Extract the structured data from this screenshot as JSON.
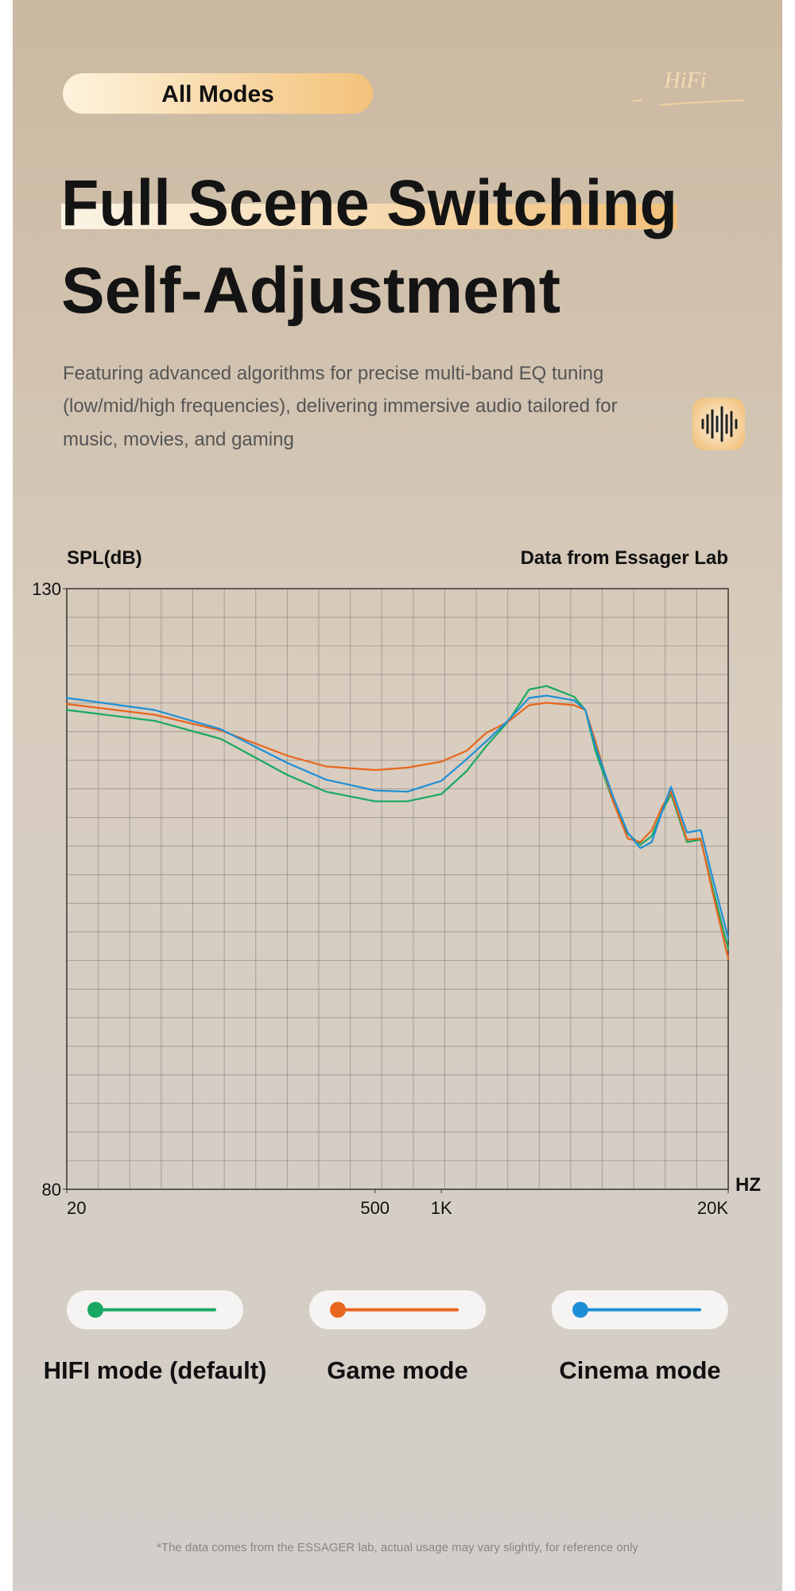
{
  "badge": "All Modes",
  "logo": "HiFi",
  "title_lines": [
    "Full Scene Switching",
    "Self-Adjustment"
  ],
  "description_lines": [
    "Featuring advanced algorithms for precise multi-band EQ tuning",
    "(low/mid/high frequencies), delivering immersive audio tailored for",
    "music, movies, and gaming"
  ],
  "footnote": "*The data comes from the ESSAGER lab, actual usage may vary slightly, for reference only",
  "chart_data": {
    "type": "line",
    "y_label": "SPL(dB)",
    "source": "Data from Essager Lab",
    "x_label": "HZ",
    "x": [
      20,
      50,
      100,
      200,
      300,
      500,
      700,
      1000,
      1300,
      1600,
      2000,
      2500,
      3000,
      4000,
      4500,
      5000,
      6000,
      7000,
      8000,
      9000,
      10000,
      11000,
      13000,
      15000,
      17000,
      20000
    ],
    "xlim": [
      20,
      20000
    ],
    "xscale": "log",
    "xticks": [
      20,
      500,
      {
        "value": 1000,
        "label": "1K"
      },
      {
        "value": 20000,
        "label": "20K"
      }
    ],
    "ylim": [
      80,
      130
    ],
    "yticks": [
      80,
      130
    ],
    "grid": true,
    "series": [
      {
        "name": "HIFI mode (default)",
        "color": "#19a862",
        "values": [
          119.9,
          119.0,
          117.5,
          114.5,
          113.1,
          112.3,
          112.3,
          112.9,
          114.8,
          116.9,
          118.9,
          121.6,
          121.9,
          121.0,
          119.9,
          116.5,
          112.3,
          109.6,
          108.7,
          109.4,
          111.4,
          112.9,
          108.9,
          109.1,
          105.1,
          100.0
        ]
      },
      {
        "name": "Game mode",
        "color": "#e8661e",
        "values": [
          120.4,
          119.5,
          118.2,
          116.1,
          115.2,
          114.9,
          115.1,
          115.6,
          116.5,
          118.0,
          118.9,
          120.3,
          120.5,
          120.3,
          119.9,
          117.3,
          112.3,
          109.2,
          108.9,
          109.9,
          111.8,
          113.1,
          109.1,
          109.2,
          104.7,
          99.2
        ]
      },
      {
        "name": "Cinema mode",
        "color": "#1e8fd6",
        "values": [
          120.9,
          119.9,
          118.3,
          115.5,
          114.1,
          113.2,
          113.1,
          114.0,
          115.8,
          117.3,
          119.0,
          120.9,
          121.1,
          120.7,
          119.9,
          116.9,
          112.7,
          109.7,
          108.4,
          108.9,
          111.4,
          113.5,
          109.7,
          109.9,
          105.9,
          100.9
        ]
      }
    ]
  }
}
